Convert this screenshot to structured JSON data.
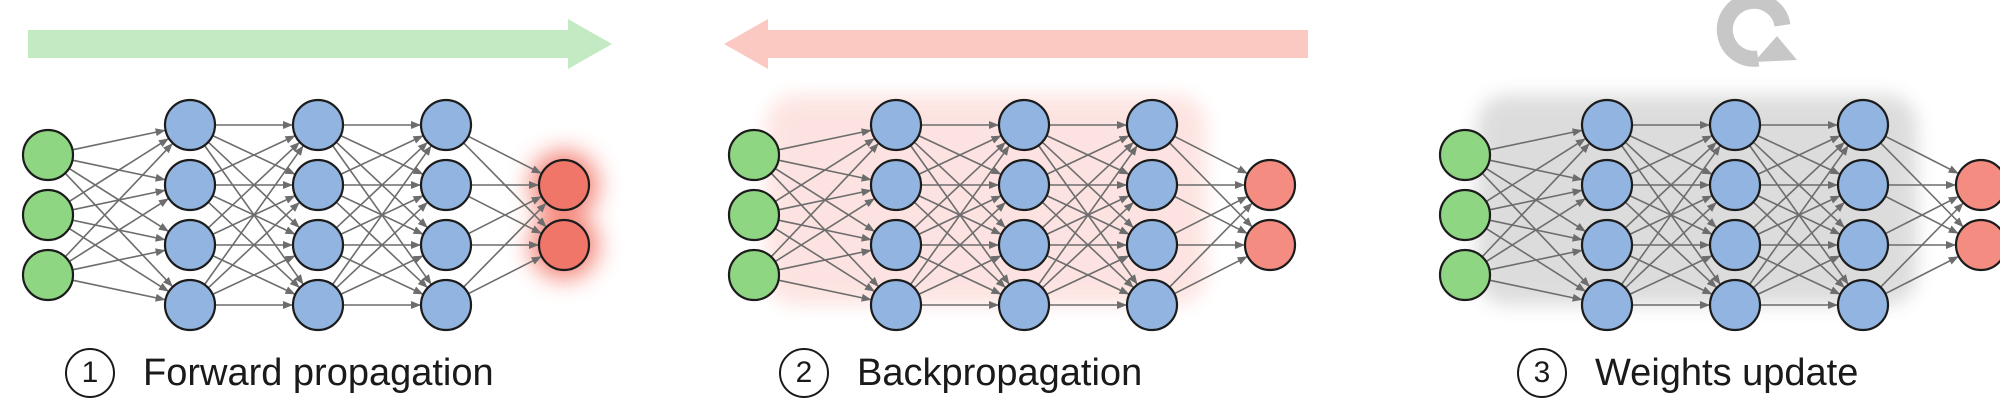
{
  "colors": {
    "input_node": "#8fd683",
    "hidden_node": "#92b4e0",
    "output_node": "#f0766a",
    "output_node_soft": "#f48c82",
    "node_stroke": "#1c1c1c",
    "edge": "#6d6d6d",
    "forward_arrow": "#c3eac3",
    "backward_arrow": "#fcc8c2",
    "update_icon": "#c7c7c7",
    "glow_red": "#f05a4a",
    "glow_gray": "#555555",
    "text": "#1a1a1a"
  },
  "network": {
    "layer_sizes": [
      3,
      4,
      4,
      4,
      2
    ]
  },
  "panels": [
    {
      "step": "1",
      "title": "Forward propagation",
      "indicator": "arrow-right",
      "effect": "output-glow"
    },
    {
      "step": "2",
      "title": "Backpropagation",
      "indicator": "arrow-left",
      "effect": "red-edge-glow"
    },
    {
      "step": "3",
      "title": "Weights update",
      "indicator": "refresh-icon",
      "effect": "gray-edge-glow"
    }
  ]
}
